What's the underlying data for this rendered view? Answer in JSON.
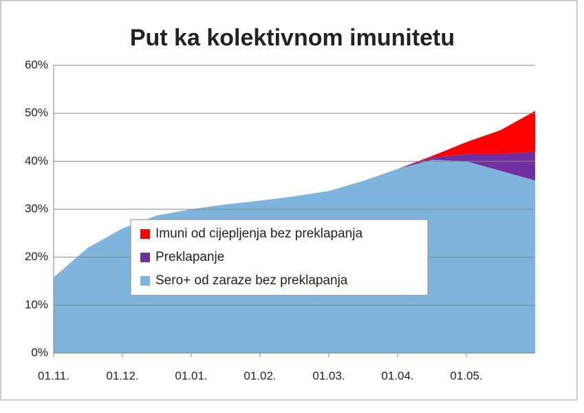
{
  "chart_data": {
    "type": "stacked_area",
    "title": "Put ka kolektivnom imunitetu",
    "categories": [
      "01.11.",
      null,
      "01.12.",
      null,
      "01.01.",
      null,
      "01.02.",
      null,
      "01.03.",
      null,
      "01.04.",
      null,
      "01.05.",
      null,
      null
    ],
    "series": [
      {
        "name": "Sero+ od zaraze bez preklapanja",
        "color": "#7fb5dc",
        "values": [
          15.8,
          22,
          26,
          28.7,
          30,
          31,
          31.8,
          32.7,
          33.8,
          35.9,
          38.4,
          40.3,
          40,
          38,
          36
        ]
      },
      {
        "name": "Preklapanje",
        "color": "#7030a0",
        "values": [
          0,
          0,
          0,
          0,
          0,
          0,
          0,
          0,
          0,
          0,
          0,
          0.5,
          1.5,
          3.5,
          6
        ]
      },
      {
        "name": "Imuni od cijepljenja bez preklapanja",
        "color": "#ff0000",
        "values": [
          0,
          0,
          0,
          0,
          0,
          0,
          0,
          0,
          0,
          0,
          0,
          0.3,
          2.5,
          5,
          8.5
        ]
      }
    ],
    "ylim": [
      0,
      60
    ],
    "yticks": [
      {
        "value": 0,
        "label": "0%"
      },
      {
        "value": 10,
        "label": "10%"
      },
      {
        "value": 20,
        "label": "20%"
      },
      {
        "value": 30,
        "label": "30%"
      },
      {
        "value": 40,
        "label": "40%"
      },
      {
        "value": 50,
        "label": "50%"
      },
      {
        "value": 60,
        "label": "60%"
      }
    ],
    "grid": true
  }
}
